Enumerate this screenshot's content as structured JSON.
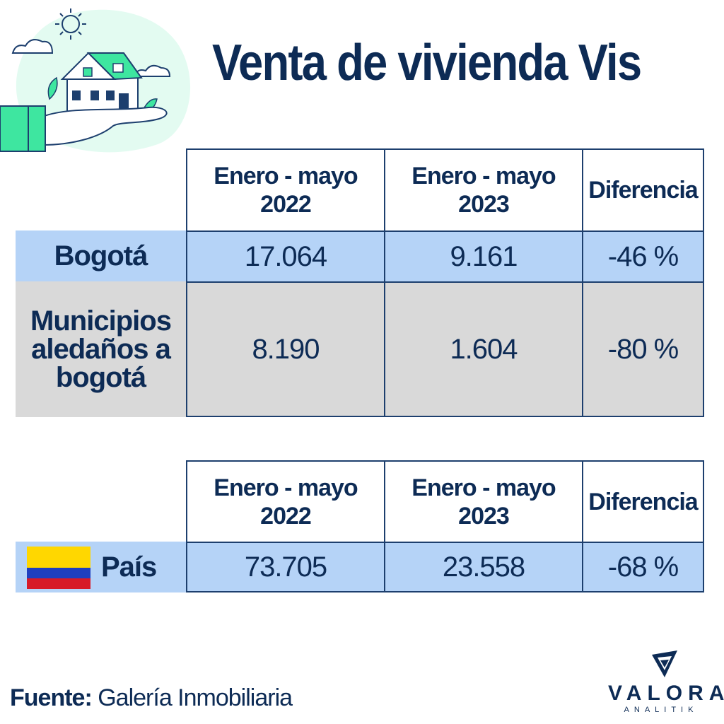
{
  "title": "Venta de vivienda Vis",
  "colors": {
    "navy": "#0d2b55",
    "row_blue": "#b5d3f7",
    "row_gray": "#d9d9d9",
    "illustration_green": "#3ee6a0",
    "flag_yellow": "#ffd700",
    "flag_blue": "#1f3fbf",
    "flag_red": "#d71a28"
  },
  "icons": [
    "house-in-hand-illustration",
    "colombia-flag-icon",
    "valora-analitik-logo"
  ],
  "chart_data": [
    {
      "type": "table",
      "columns": [
        {
          "line1": "Enero - mayo",
          "line2": "2022"
        },
        {
          "line1": "Enero - mayo",
          "line2": "2023"
        },
        {
          "line1": "Diferencia",
          "line2": ""
        }
      ],
      "rows": [
        {
          "label_lines": [
            "Bogotá"
          ],
          "values": [
            "17.064",
            "9.161",
            "-46 %"
          ],
          "num": [
            17064,
            9161,
            -46
          ]
        },
        {
          "label_lines": [
            "Municipios",
            "aledaños a",
            "bogotá"
          ],
          "values": [
            "8.190",
            "1.604",
            "-80 %"
          ],
          "num": [
            8190,
            1604,
            -80
          ]
        }
      ]
    },
    {
      "type": "table",
      "columns": [
        {
          "line1": "Enero - mayo",
          "line2": "2022"
        },
        {
          "line1": "Enero - mayo",
          "line2": "2023"
        },
        {
          "line1": "Diferencia",
          "line2": ""
        }
      ],
      "rows": [
        {
          "label_lines": [
            "País"
          ],
          "values": [
            "73.705",
            "23.558",
            "-68 %"
          ],
          "num": [
            73705,
            23558,
            -68
          ]
        }
      ]
    }
  ],
  "source": {
    "label": "Fuente:",
    "text": "Galería Inmobiliaria"
  },
  "logo": {
    "name": "VALORA",
    "sub": "ANALITIK"
  }
}
